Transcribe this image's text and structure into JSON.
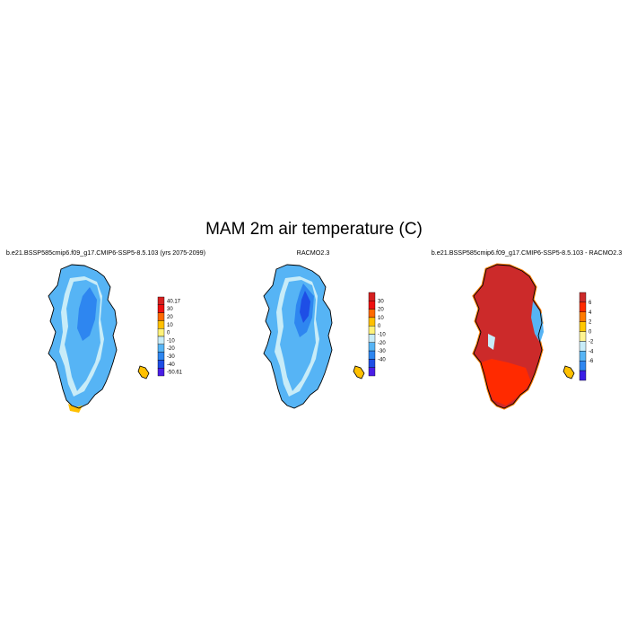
{
  "title": "MAM 2m air temperature (C)",
  "panels": [
    {
      "title": "b.e21.BSSP585cmip6.f09_g17.CMIP6-SSP5-8.5.103 (yrs 2075-2099)",
      "colorbar": {
        "labels": [
          "40.17",
          "30",
          "20",
          "10",
          "0",
          "-10",
          "-20",
          "-30",
          "-40",
          "-50.61"
        ],
        "colors": [
          "#d62020",
          "#ee1010",
          "#ff6a00",
          "#ffc000",
          "#fff27a",
          "#c8ecf8",
          "#56b4f5",
          "#2e86f0",
          "#1e4ee6",
          "#4a1ee6"
        ]
      }
    },
    {
      "title": "RACMO2.3",
      "colorbar": {
        "labels": [
          "30",
          "20",
          "10",
          "0",
          "-10",
          "-20",
          "-30",
          "-40"
        ],
        "colors": [
          "#d62020",
          "#ee1010",
          "#ff6a00",
          "#ffc000",
          "#fff27a",
          "#c8ecf8",
          "#56b4f5",
          "#2e86f0",
          "#1e4ee6",
          "#4a1ee6"
        ]
      }
    },
    {
      "title": "b.e21.BSSP585cmip6.f09_g17.CMIP6-SSP5-8.5.103 - RACMO2.3",
      "colorbar": {
        "labels": [
          "6",
          "4",
          "2",
          "0",
          "-2",
          "-4",
          "-6"
        ],
        "colors": [
          "#cc2a2a",
          "#ff2a00",
          "#ff7a00",
          "#ffc800",
          "#fff490",
          "#c8ecf8",
          "#56b4f5",
          "#2e86f0",
          "#3a1ee6"
        ]
      }
    }
  ]
}
